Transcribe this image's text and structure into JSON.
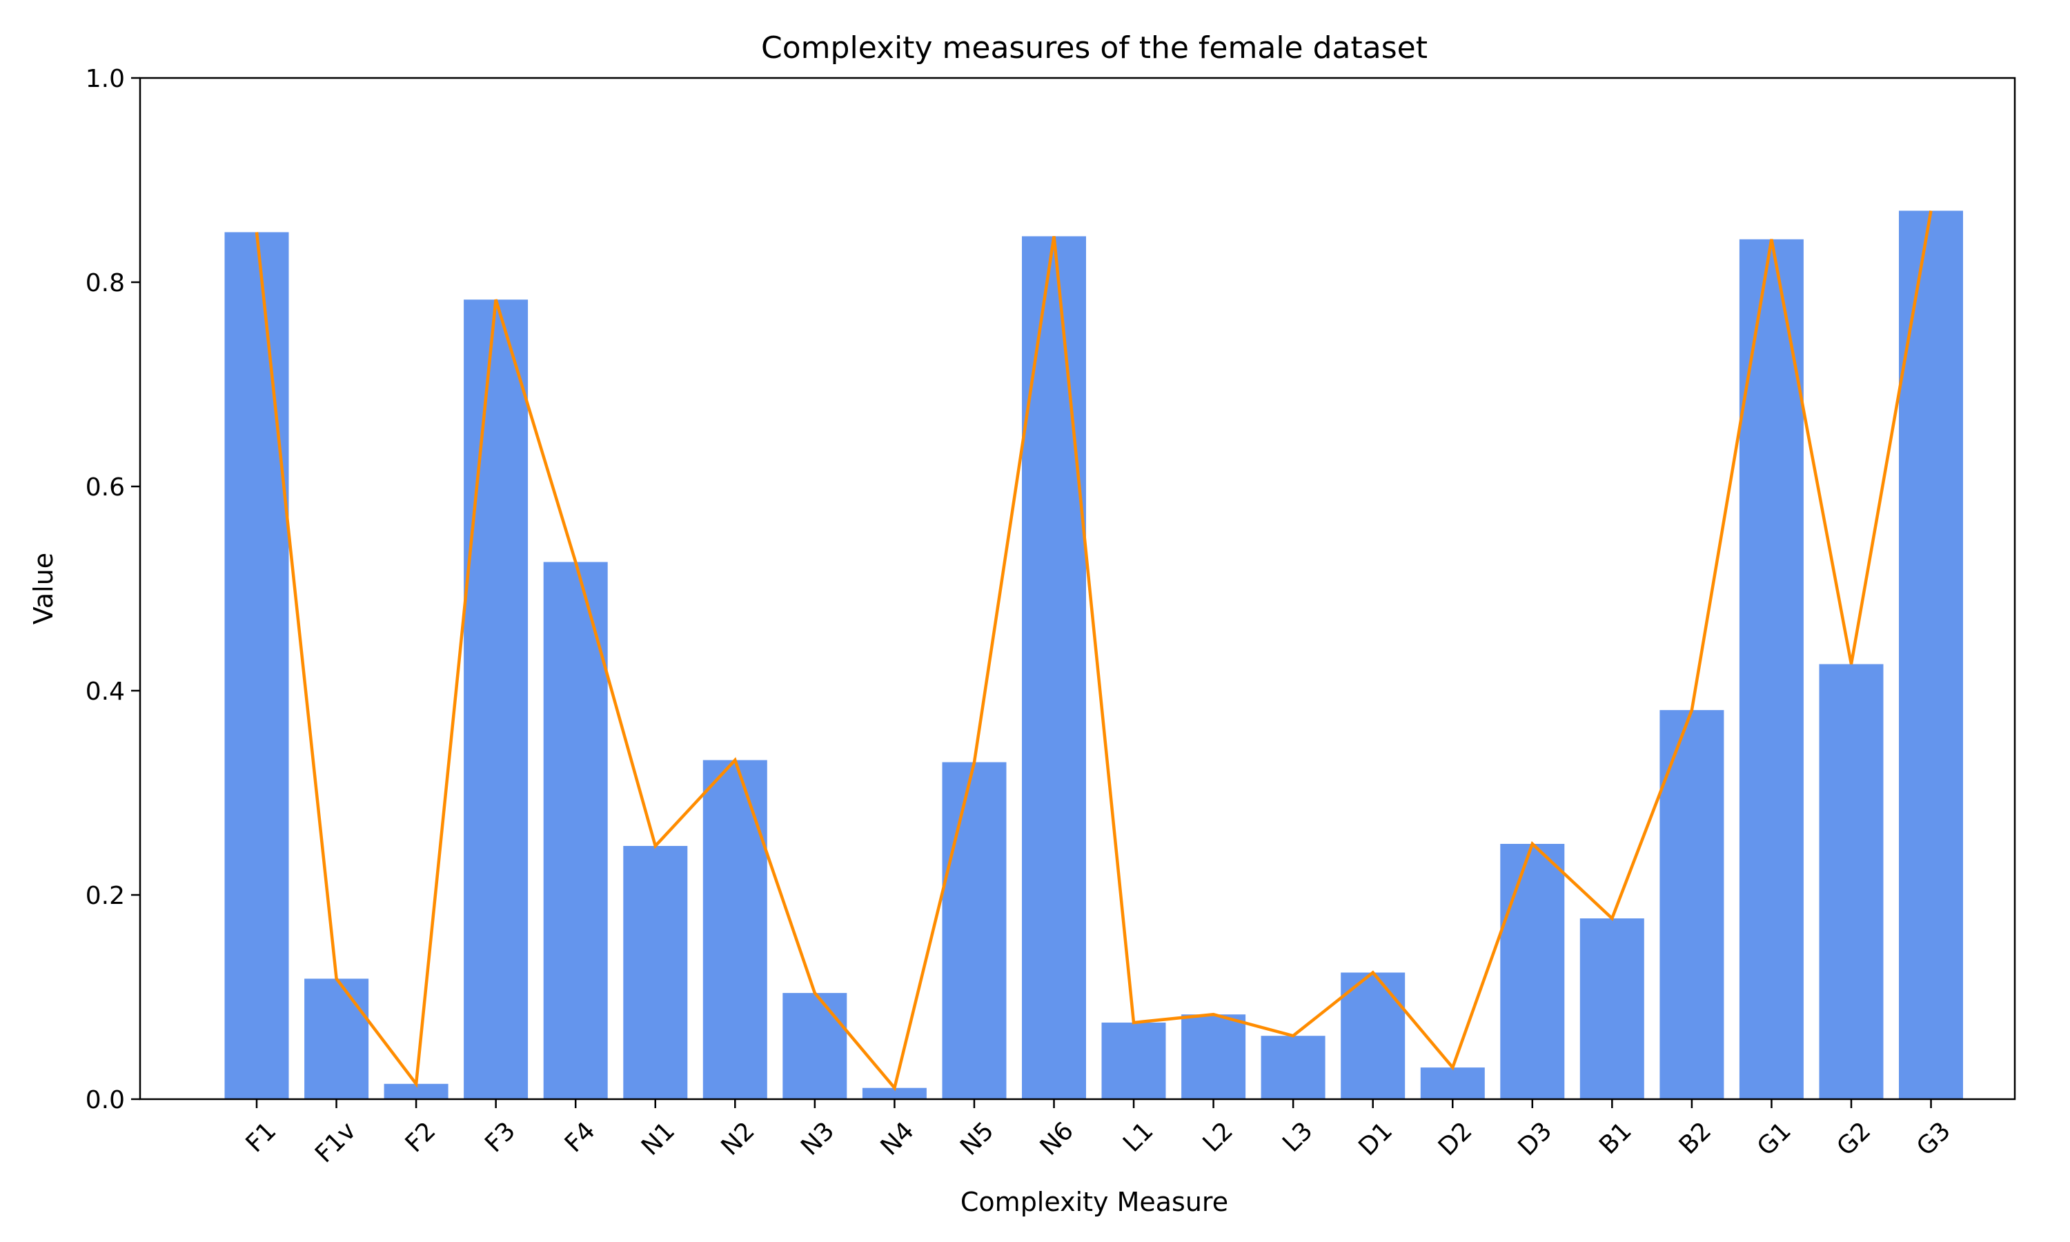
{
  "chart_data": {
    "type": "bar",
    "title": "Complexity measures of the female dataset",
    "xlabel": "Complexity Measure",
    "ylabel": "Value",
    "ylim": [
      0,
      1.0
    ],
    "yticks": [
      "0.0",
      "0.2",
      "0.4",
      "0.6",
      "0.8",
      "1.0"
    ],
    "categories": [
      "F1",
      "F1v",
      "F2",
      "F3",
      "F4",
      "N1",
      "N2",
      "N3",
      "N4",
      "N5",
      "N6",
      "L1",
      "L2",
      "L3",
      "D1",
      "D2",
      "D3",
      "B1",
      "B2",
      "G1",
      "G2",
      "G3"
    ],
    "values": [
      0.849,
      0.118,
      0.015,
      0.783,
      0.526,
      0.248,
      0.332,
      0.104,
      0.011,
      0.33,
      0.845,
      0.075,
      0.083,
      0.062,
      0.124,
      0.031,
      0.25,
      0.177,
      0.381,
      0.842,
      0.426,
      0.87
    ],
    "overlay_line": true,
    "grid": false,
    "colors": {
      "bar": "#6495ED",
      "line": "#FF8C00"
    }
  }
}
